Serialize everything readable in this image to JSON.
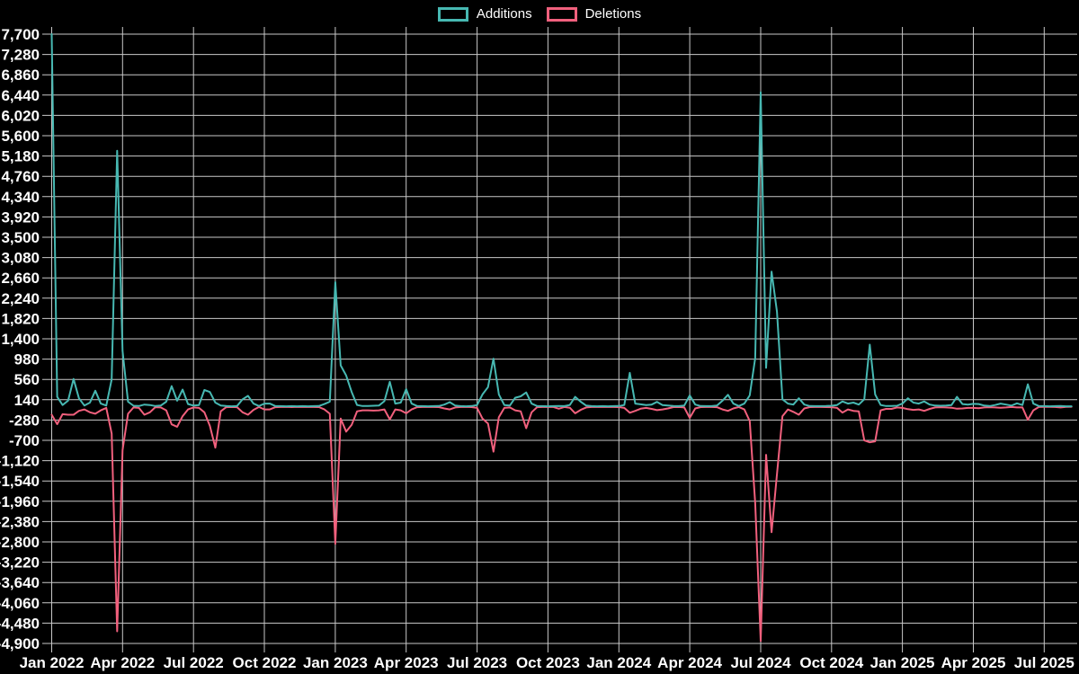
{
  "legend": {
    "items": [
      {
        "label": "Additions",
        "color": "#47b8b2"
      },
      {
        "label": "Deletions",
        "color": "#f1607d"
      }
    ]
  },
  "chart_data": {
    "type": "line",
    "title": "",
    "xlabel": "",
    "ylabel": "",
    "x_unit": "week",
    "legend_position": "top",
    "background_color": "#000000",
    "grid_color": "#c9c9c9",
    "text_color": "#ffffff",
    "grid": true,
    "y_range": [
      -4900,
      7700
    ],
    "y_tick_step": 420,
    "y_ticks": [
      7700,
      7280,
      6860,
      6440,
      6020,
      5600,
      5180,
      4760,
      4340,
      3920,
      3500,
      3080,
      2660,
      2240,
      1820,
      1400,
      980,
      560,
      140,
      -280,
      -700,
      -1120,
      -1540,
      -1960,
      -2380,
      -2800,
      -3220,
      -3640,
      -4060,
      -4480,
      -4900
    ],
    "y_tick_labels": [
      "7,700",
      "7,280",
      "6,860",
      "6,440",
      "6,020",
      "5,600",
      "5,180",
      "4,760",
      "4,340",
      "3,920",
      "3,500",
      "3,080",
      "2,660",
      "2,240",
      "1,820",
      "1,400",
      "980",
      "560",
      "140",
      "-280",
      "-700",
      "-1,120",
      "-1,540",
      "-1,960",
      "-2,380",
      "-2,800",
      "-3,220",
      "-3,640",
      "-4,060",
      "-4,480",
      "-4,900"
    ],
    "x_tick_labels": [
      "Jan 2022",
      "Apr 2022",
      "Jul 2022",
      "Oct 2022",
      "Jan 2023",
      "Apr 2023",
      "Jul 2023",
      "Oct 2023",
      "Jan 2024",
      "Apr 2024",
      "Jul 2024",
      "Oct 2024",
      "Jan 2025",
      "Apr 2025",
      "Jul 2025"
    ],
    "x_tick_weeks": [
      0,
      13,
      26,
      39,
      52,
      65,
      78,
      91,
      104,
      117,
      130,
      143,
      156,
      169,
      182
    ],
    "series": [
      {
        "name": "Additions",
        "color": "#47b8b2",
        "values": [
          7700,
          200,
          30,
          120,
          570,
          170,
          20,
          80,
          325,
          60,
          20,
          560,
          5290,
          1150,
          100,
          15,
          10,
          40,
          30,
          10,
          20,
          100,
          420,
          120,
          350,
          50,
          20,
          30,
          340,
          300,
          80,
          20,
          10,
          5,
          10,
          150,
          220,
          60,
          10,
          60,
          60,
          10,
          8,
          5,
          8,
          5,
          8,
          5,
          8,
          10,
          50,
          100,
          2570,
          850,
          640,
          300,
          30,
          10,
          10,
          15,
          20,
          110,
          510,
          60,
          80,
          360,
          60,
          10,
          8,
          5,
          8,
          10,
          40,
          90,
          20,
          8,
          5,
          10,
          30,
          250,
          400,
          990,
          250,
          30,
          20,
          180,
          210,
          290,
          60,
          10,
          8,
          5,
          8,
          10,
          8,
          30,
          200,
          100,
          20,
          8,
          5,
          8,
          5,
          8,
          10,
          30,
          695,
          60,
          45,
          30,
          40,
          95,
          30,
          20,
          10,
          8,
          20,
          230,
          40,
          10,
          8,
          8,
          20,
          120,
          243,
          60,
          10,
          60,
          230,
          1000,
          6500,
          800,
          2790,
          1960,
          150,
          60,
          40,
          170,
          40,
          10,
          8,
          8,
          10,
          15,
          30,
          105,
          60,
          80,
          40,
          150,
          1280,
          250,
          30,
          10,
          10,
          15,
          60,
          170,
          80,
          60,
          105,
          40,
          20,
          15,
          20,
          30,
          200,
          50,
          40,
          55,
          50,
          20,
          10,
          30,
          60,
          40,
          20,
          65,
          30,
          460,
          60,
          10,
          8,
          5,
          8,
          10,
          5,
          5
        ]
      },
      {
        "name": "Deletions",
        "color": "#f1607d",
        "values": [
          -170,
          -365,
          -160,
          -170,
          -170,
          -90,
          -60,
          -120,
          -150,
          -80,
          -30,
          -560,
          -4650,
          -900,
          -150,
          -20,
          -30,
          -170,
          -120,
          -15,
          -20,
          -80,
          -370,
          -420,
          -200,
          -60,
          -20,
          -30,
          -120,
          -400,
          -850,
          -100,
          -15,
          -10,
          -15,
          -120,
          -170,
          -70,
          -10,
          -60,
          -60,
          -15,
          -10,
          -8,
          -12,
          -8,
          -10,
          -8,
          -10,
          -12,
          -60,
          -150,
          -2840,
          -250,
          -520,
          -380,
          -100,
          -80,
          -80,
          -85,
          -80,
          -60,
          -265,
          -60,
          -80,
          -140,
          -60,
          -15,
          -10,
          -8,
          -10,
          -12,
          -40,
          -60,
          -20,
          -10,
          -8,
          -12,
          -30,
          -250,
          -350,
          -935,
          -220,
          -30,
          -20,
          -80,
          -100,
          -450,
          -120,
          -15,
          -10,
          -8,
          -10,
          -45,
          -10,
          -25,
          -140,
          -70,
          -20,
          -10,
          -8,
          -10,
          -8,
          -10,
          -12,
          -30,
          -130,
          -90,
          -45,
          -30,
          -50,
          -75,
          -60,
          -40,
          -12,
          -10,
          -20,
          -235,
          -40,
          -12,
          -10,
          -10,
          -15,
          -60,
          -90,
          -40,
          -10,
          -60,
          -300,
          -2000,
          -4850,
          -1000,
          -2600,
          -1400,
          -200,
          -60,
          -110,
          -170,
          -40,
          -12,
          -10,
          -10,
          -12,
          -15,
          -30,
          -125,
          -60,
          -90,
          -100,
          -700,
          -740,
          -720,
          -80,
          -50,
          -50,
          -20,
          -30,
          -55,
          -70,
          -60,
          -90,
          -50,
          -20,
          -15,
          -20,
          -25,
          -45,
          -40,
          -30,
          -30,
          -35,
          -20,
          -15,
          -20,
          -25,
          -20,
          -10,
          -20,
          -20,
          -275,
          -80,
          -10,
          -8,
          -8,
          -10,
          -20,
          -8,
          -5
        ]
      }
    ]
  }
}
